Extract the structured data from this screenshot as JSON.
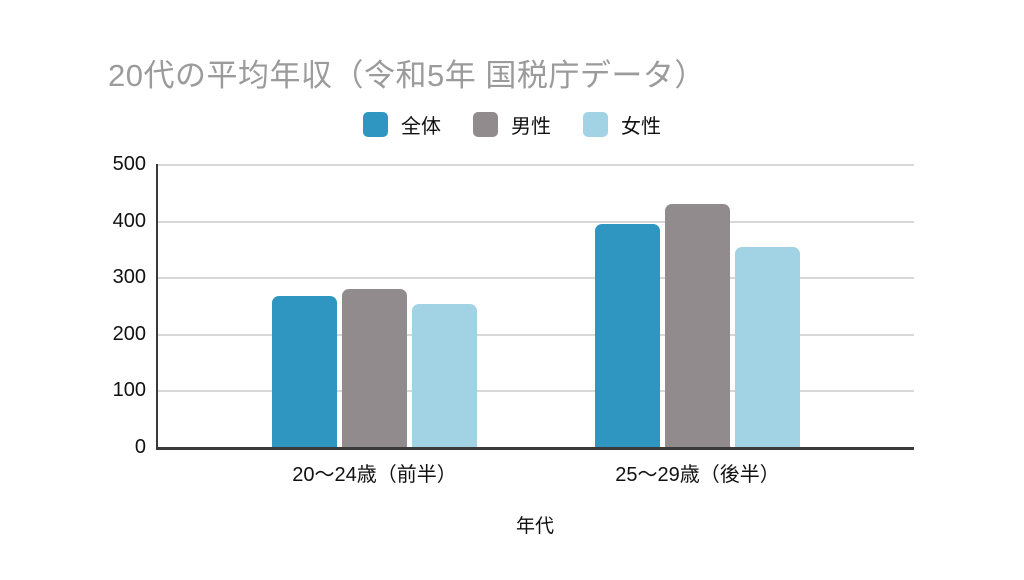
{
  "title": "20代の平均年収（令和5年 国税庁データ）",
  "colors": {
    "title": "#9b9b9b",
    "axis": "#3a3a3a",
    "grid": "#d8d8d8",
    "text": "#111111",
    "series_zentai": "#2e96c1",
    "series_dansei": "#918b8d",
    "series_josei": "#a2d3e4"
  },
  "chart_data": {
    "type": "bar",
    "title": "20代の平均年収（令和5年 国税庁データ）",
    "categories": [
      "20〜24歳（前半）",
      "25〜29歳（後半）"
    ],
    "series": [
      {
        "name": "全体",
        "color": "#2e96c1",
        "values": [
          267,
          394
        ]
      },
      {
        "name": "男性",
        "color": "#918b8d",
        "values": [
          279,
          429
        ]
      },
      {
        "name": "女性",
        "color": "#a2d3e4",
        "values": [
          253,
          353
        ]
      }
    ],
    "xlabel": "年代",
    "ylabel": "",
    "ylim": [
      0,
      500
    ],
    "yticks": [
      0,
      100,
      200,
      300,
      400,
      500
    ],
    "grid": "horizontal",
    "legend_position": "top"
  }
}
